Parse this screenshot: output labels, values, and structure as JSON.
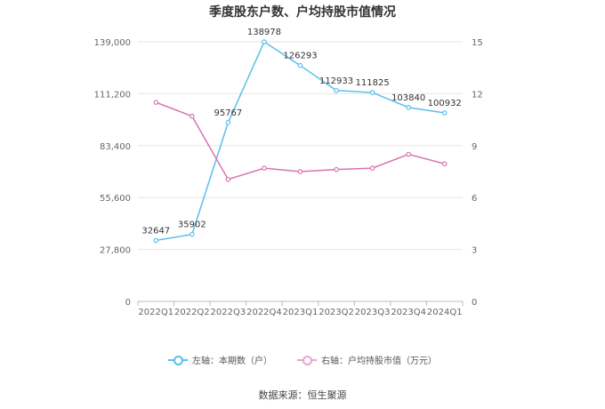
{
  "chart_data": {
    "type": "line",
    "title": "季度股东户数、户均持股市值情况",
    "categories": [
      "2022Q1",
      "2022Q2",
      "2022Q3",
      "2022Q4",
      "2023Q1",
      "2023Q2",
      "2023Q3",
      "2023Q4",
      "2024Q1"
    ],
    "y_left": {
      "ticks": [
        "0",
        "27,800",
        "55,600",
        "83,400",
        "111,200",
        "139,000"
      ],
      "min": 0,
      "max": 139000
    },
    "y_right": {
      "ticks": [
        "0",
        "3",
        "6",
        "9",
        "12",
        "15"
      ],
      "min": 0,
      "max": 15
    },
    "series": [
      {
        "name": "左轴：本期数（户）",
        "axis": "left",
        "color": "#5bc0ea",
        "values": [
          32647,
          35902,
          95767,
          138978,
          126293,
          112933,
          111825,
          103840,
          100932
        ],
        "labels": [
          "32647",
          "35902",
          "95767",
          "138978",
          "126293",
          "112933",
          "111825",
          "103840",
          "100932"
        ]
      },
      {
        "name": "右轴：户均持股市值（万元）",
        "axis": "right",
        "color": "#d874b4",
        "values": [
          11.5,
          10.7,
          7.05,
          7.7,
          7.5,
          7.62,
          7.7,
          8.5,
          7.95
        ]
      }
    ],
    "grid": true,
    "legend": "bottom"
  },
  "footer": {
    "source": "数据来源：恒生聚源"
  }
}
